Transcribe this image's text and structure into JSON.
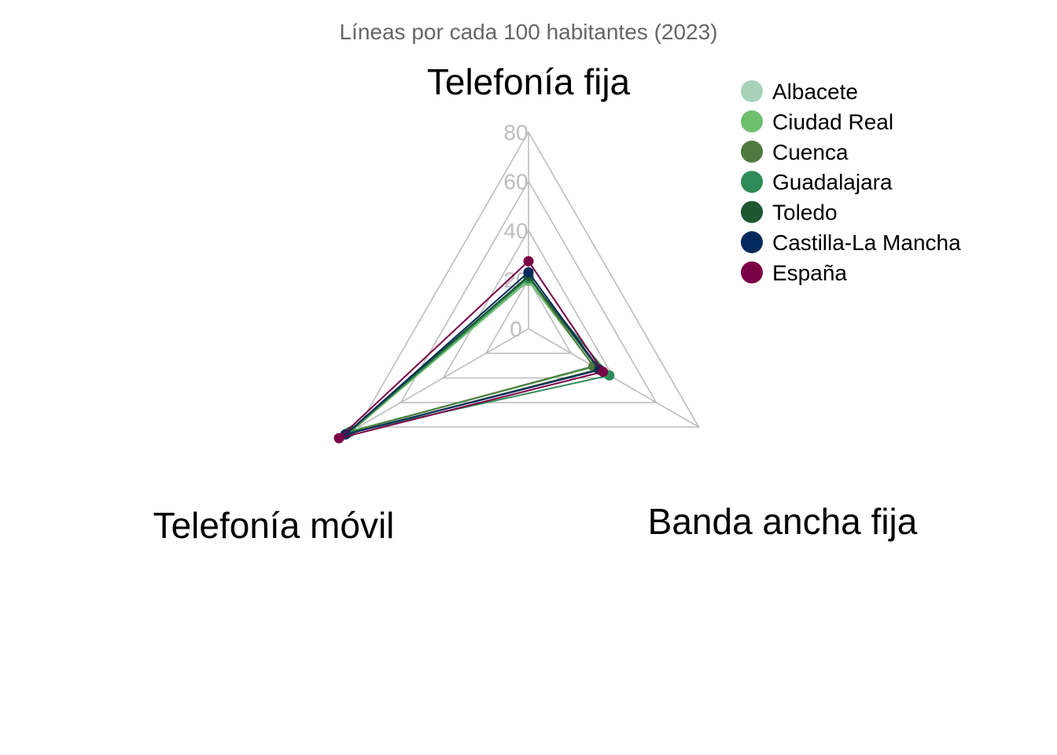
{
  "chart_data": {
    "type": "radar",
    "title": "",
    "subtitle": "Líneas por cada 100 habitantes (2023)",
    "axes": [
      "Telefonía fija",
      "Banda ancha fija",
      "Telefonía móvil"
    ],
    "rlim": [
      0,
      80
    ],
    "ticks": [
      "0",
      "20",
      "40",
      "60",
      "80"
    ],
    "tick_values": [
      0,
      20,
      40,
      60,
      80
    ],
    "grid": true,
    "legend_position": "top-right",
    "series": [
      {
        "name": "Albacete",
        "color": "#a6d3b8",
        "values": [
          19.5,
          31.0,
          84.0
        ]
      },
      {
        "name": "Ciudad Real",
        "color": "#6dbe6d",
        "values": [
          19.5,
          31.0,
          83.0
        ]
      },
      {
        "name": "Cuenca",
        "color": "#4e7a3f",
        "values": [
          21.0,
          30.5,
          84.0
        ]
      },
      {
        "name": "Guadalajara",
        "color": "#2e8b57",
        "values": [
          20.5,
          38.0,
          85.0
        ]
      },
      {
        "name": "Toledo",
        "color": "#1e5631",
        "values": [
          21.5,
          33.0,
          86.0
        ]
      },
      {
        "name": "Castilla-La Mancha",
        "color": "#002b5c",
        "values": [
          23.0,
          33.5,
          86.0
        ]
      },
      {
        "name": "España",
        "color": "#7a0045",
        "values": [
          27.5,
          35.0,
          89.0
        ]
      }
    ]
  }
}
